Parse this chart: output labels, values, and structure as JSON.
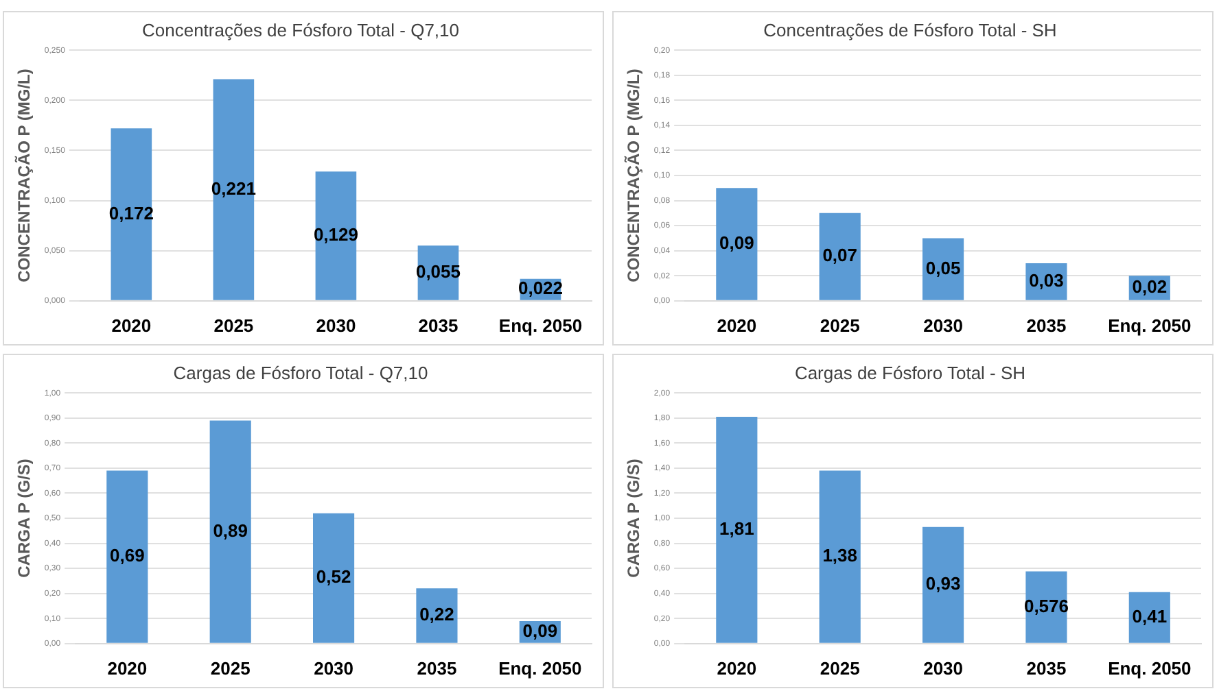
{
  "chart_data": [
    {
      "type": "bar",
      "title": "Concentrações de Fósforo Total - Q7,10",
      "ylabel": "CONCENTRAÇÃO P (MG/L)",
      "categories": [
        "2020",
        "2025",
        "2030",
        "2035",
        "Enq. 2050"
      ],
      "values": [
        0.172,
        0.221,
        0.129,
        0.055,
        0.022
      ],
      "value_labels": [
        "0,172",
        "0,221",
        "0,129",
        "0,055",
        "0,022"
      ],
      "color": "#5b9bd5",
      "ylim": [
        0,
        0.25
      ],
      "yticks": [
        {
          "value": 0,
          "label": "0,000"
        },
        {
          "value": 0.05,
          "label": "0,050"
        },
        {
          "value": 0.1,
          "label": "0,100"
        },
        {
          "value": 0.15,
          "label": "0,150"
        },
        {
          "value": 0.2,
          "label": "0,200"
        },
        {
          "value": 0.25,
          "label": "0,250"
        }
      ],
      "grid": "y",
      "legend": false
    },
    {
      "type": "bar",
      "title": "Concentrações de Fósforo Total - SH",
      "ylabel": "CONCENTRAÇÃO P (MG/L)",
      "categories": [
        "2020",
        "2025",
        "2030",
        "2035",
        "Enq. 2050"
      ],
      "values": [
        0.09,
        0.07,
        0.05,
        0.03,
        0.02
      ],
      "value_labels": [
        "0,09",
        "0,07",
        "0,05",
        "0,03",
        "0,02"
      ],
      "color": "#5b9bd5",
      "ylim": [
        0,
        0.2
      ],
      "yticks": [
        {
          "value": 0,
          "label": "0,00"
        },
        {
          "value": 0.02,
          "label": "0,02"
        },
        {
          "value": 0.04,
          "label": "0,04"
        },
        {
          "value": 0.06,
          "label": "0,06"
        },
        {
          "value": 0.08,
          "label": "0,08"
        },
        {
          "value": 0.1,
          "label": "0,10"
        },
        {
          "value": 0.12,
          "label": "0,12"
        },
        {
          "value": 0.14,
          "label": "0,14"
        },
        {
          "value": 0.16,
          "label": "0,16"
        },
        {
          "value": 0.18,
          "label": "0,18"
        },
        {
          "value": 0.2,
          "label": "0,20"
        }
      ],
      "grid": "y",
      "legend": false
    },
    {
      "type": "bar",
      "title": "Cargas de Fósforo Total - Q7,10",
      "ylabel": "CARGA P (G/S)",
      "categories": [
        "2020",
        "2025",
        "2030",
        "2035",
        "Enq. 2050"
      ],
      "values": [
        0.69,
        0.89,
        0.52,
        0.22,
        0.09
      ],
      "value_labels": [
        "0,69",
        "0,89",
        "0,52",
        "0,22",
        "0,09"
      ],
      "color": "#5b9bd5",
      "ylim": [
        0,
        1
      ],
      "yticks": [
        {
          "value": 0,
          "label": "0,00"
        },
        {
          "value": 0.1,
          "label": "0,10"
        },
        {
          "value": 0.2,
          "label": "0,20"
        },
        {
          "value": 0.3,
          "label": "0,30"
        },
        {
          "value": 0.4,
          "label": "0,40"
        },
        {
          "value": 0.5,
          "label": "0,50"
        },
        {
          "value": 0.6,
          "label": "0,60"
        },
        {
          "value": 0.7,
          "label": "0,70"
        },
        {
          "value": 0.8,
          "label": "0,80"
        },
        {
          "value": 0.9,
          "label": "0,90"
        },
        {
          "value": 1,
          "label": "1,00"
        }
      ],
      "grid": "y",
      "legend": false
    },
    {
      "type": "bar",
      "title": "Cargas de Fósforo Total - SH",
      "ylabel": "CARGA P (G/S)",
      "categories": [
        "2020",
        "2025",
        "2030",
        "2035",
        "Enq. 2050"
      ],
      "values": [
        1.81,
        1.38,
        0.93,
        0.576,
        0.41
      ],
      "value_labels": [
        "1,81",
        "1,38",
        "0,93",
        "0,576",
        "0,41"
      ],
      "color": "#5b9bd5",
      "ylim": [
        0,
        2
      ],
      "yticks": [
        {
          "value": 0,
          "label": "0,00"
        },
        {
          "value": 0.2,
          "label": "0,20"
        },
        {
          "value": 0.4,
          "label": "0,40"
        },
        {
          "value": 0.6,
          "label": "0,60"
        },
        {
          "value": 0.8,
          "label": "0,80"
        },
        {
          "value": 1,
          "label": "1,00"
        },
        {
          "value": 1.2,
          "label": "1,20"
        },
        {
          "value": 1.4,
          "label": "1,40"
        },
        {
          "value": 1.6,
          "label": "1,60"
        },
        {
          "value": 1.8,
          "label": "1,80"
        },
        {
          "value": 2,
          "label": "2,00"
        }
      ],
      "grid": "y",
      "legend": false
    }
  ]
}
